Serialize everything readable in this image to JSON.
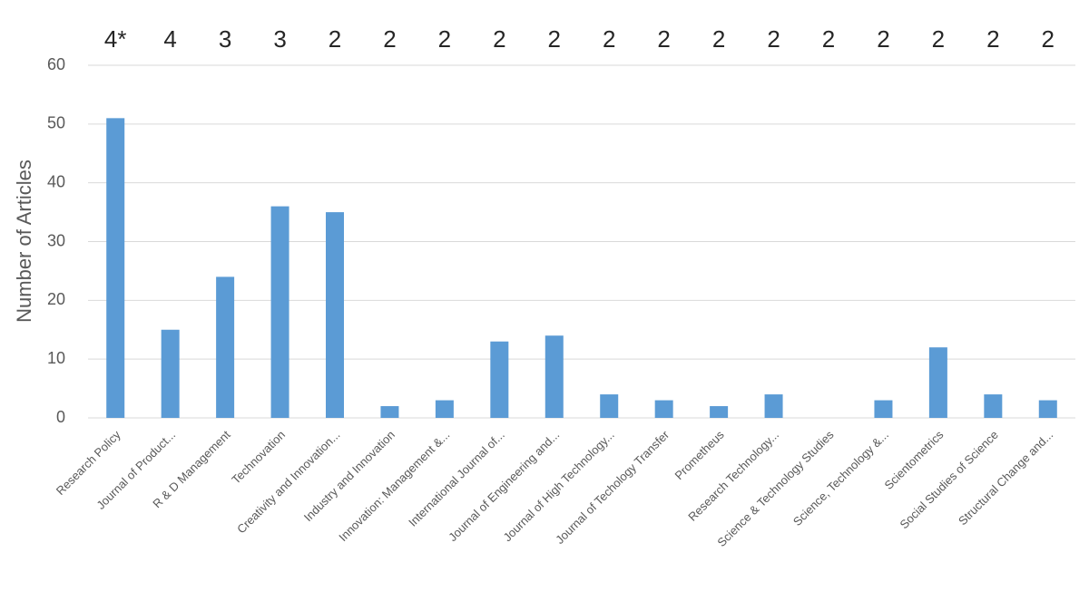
{
  "chart_data": {
    "type": "bar",
    "ylabel": "Number of Articles",
    "categories": [
      "Research Policy",
      "Journal of Product...",
      "R & D Management",
      "Technovation",
      "Creativity and Innovation...",
      "Industry and Innovation",
      "Innovation: Management &...",
      "International Journal of...",
      "Journal of Engineering and...",
      "Journal of High Technology...",
      "Journal of Techology Transfer",
      "Prometheus",
      "Research Technology...",
      "Science & Technology Studies",
      "Science, Technology &...",
      "Scientometrics",
      "Social Studies of Science",
      "Structural Change and..."
    ],
    "values": [
      51,
      15,
      24,
      36,
      35,
      2,
      3,
      13,
      14,
      4,
      3,
      2,
      4,
      0,
      3,
      12,
      4,
      3
    ],
    "annotations": [
      "4*",
      "4",
      "3",
      "3",
      "2",
      "2",
      "2",
      "2",
      "2",
      "2",
      "2",
      "2",
      "2",
      "2",
      "2",
      "2",
      "2",
      "2"
    ],
    "color": "#5b9bd5",
    "ylim": [
      0,
      60
    ],
    "yticks": [
      0,
      10,
      20,
      30,
      40,
      50,
      60
    ],
    "grid": true
  }
}
